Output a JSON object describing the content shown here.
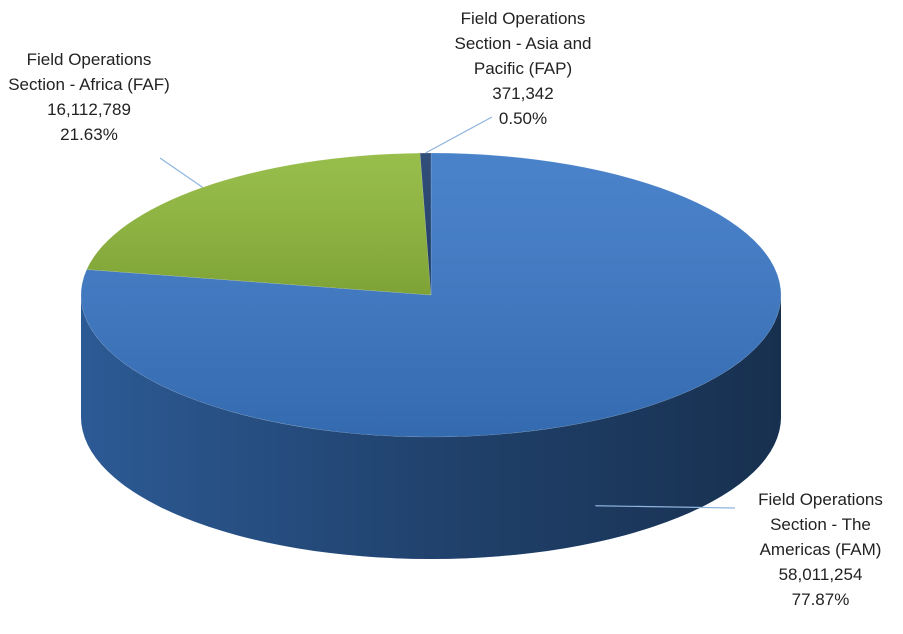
{
  "chart_data": {
    "type": "pie3d",
    "categories": [
      "Field Operations Section - The Americas (FAM)",
      "Field Operations Section - Africa (FAF)",
      "Field Operations Section - Asia and Pacific (FAP)"
    ],
    "values": [
      58011254,
      16112789,
      371342
    ],
    "value_labels": [
      "58,011,254",
      "16,112,789",
      "371,342"
    ],
    "percent_labels": [
      "77.87%",
      "21.63%",
      "0.50%"
    ],
    "colors": [
      "#3b78c6",
      "#8fb83c",
      "#1f3f6e"
    ]
  }
}
